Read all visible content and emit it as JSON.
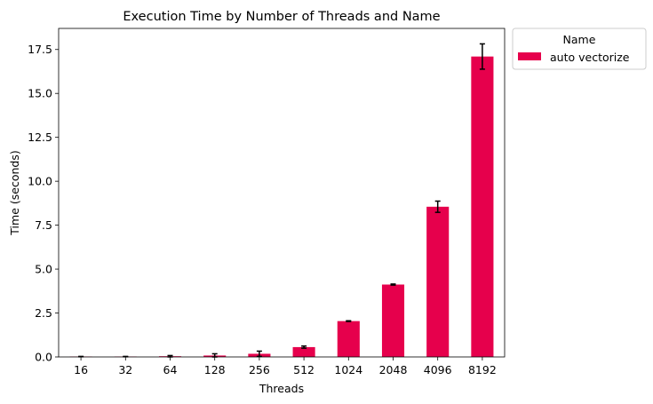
{
  "chart_data": {
    "type": "bar",
    "title": "Execution Time by Number of Threads and Name",
    "xlabel": "Threads",
    "ylabel": "Time (seconds)",
    "categories": [
      "16",
      "32",
      "64",
      "128",
      "256",
      "512",
      "1024",
      "2048",
      "4096",
      "8192"
    ],
    "series": [
      {
        "name": "auto vectorize",
        "color": "#E6004C",
        "values": [
          0.02,
          0.02,
          0.04,
          0.08,
          0.18,
          0.56,
          2.04,
          4.12,
          8.55,
          17.1
        ],
        "error": [
          0.01,
          0.01,
          0.04,
          0.1,
          0.15,
          0.06,
          0.02,
          0.03,
          0.32,
          0.72
        ]
      }
    ],
    "ylim": [
      0,
      18.7
    ],
    "yticks": [
      0.0,
      2.5,
      5.0,
      7.5,
      10.0,
      12.5,
      15.0,
      17.5
    ],
    "ytick_labels": [
      "0.0",
      "2.5",
      "5.0",
      "7.5",
      "10.0",
      "12.5",
      "15.0",
      "17.5"
    ],
    "legend": {
      "title": "Name",
      "placement": "outside-top-right"
    },
    "grid": false
  }
}
